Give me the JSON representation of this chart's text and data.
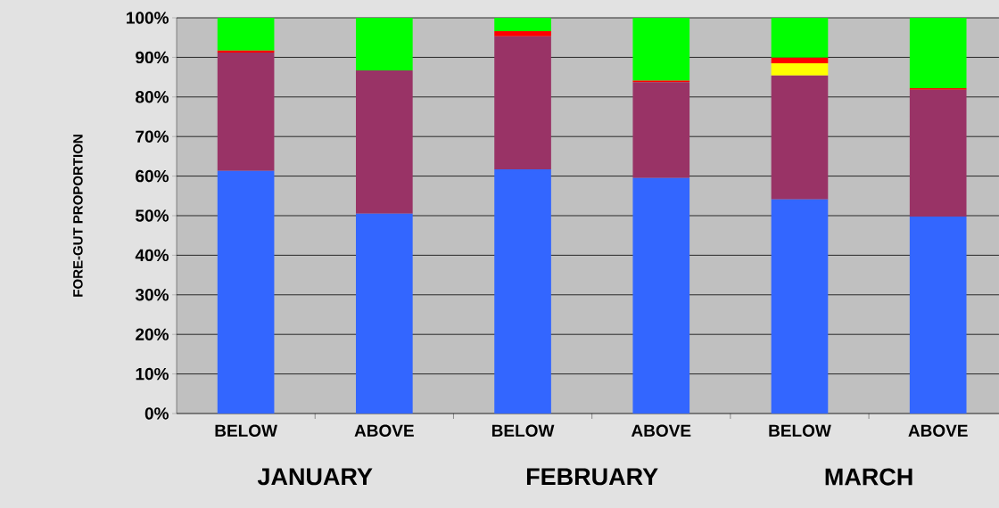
{
  "chart_data": {
    "type": "bar",
    "stacked": true,
    "categories": [
      "BELOW",
      "ABOVE",
      "BELOW",
      "ABOVE",
      "BELOW",
      "ABOVE"
    ],
    "ylabel": "FORE-GUT PROPORTION",
    "annotations": [
      "JANUARY",
      "FEBRUARY",
      "MARCH"
    ],
    "series": [
      {
        "color": "#3366ff",
        "values": [
          61.3,
          50.5,
          61.7,
          59.5,
          54.1,
          49.8
        ]
      },
      {
        "color": "#993366",
        "values": [
          29.9,
          36.2,
          33.6,
          24.2,
          31.3,
          32.0
        ]
      },
      {
        "color": "#ffff00",
        "values": [
          0,
          0,
          0,
          0,
          3.1,
          0
        ]
      },
      {
        "color": "#ff0000",
        "values": [
          0.5,
          0,
          1.3,
          0.4,
          1.4,
          0.4
        ]
      },
      {
        "color": "#00ff00",
        "values": [
          8.3,
          13.3,
          3.4,
          15.9,
          10.1,
          17.8
        ]
      }
    ],
    "ylim": [
      0,
      100
    ],
    "yticks": [
      {
        "value": 0,
        "label": "0%"
      },
      {
        "value": 10,
        "label": "10%"
      },
      {
        "value": 20,
        "label": "20%"
      },
      {
        "value": 30,
        "label": "30%"
      },
      {
        "value": 40,
        "label": "40%"
      },
      {
        "value": 50,
        "label": "50%"
      },
      {
        "value": 60,
        "label": "60%"
      },
      {
        "value": 70,
        "label": "70%"
      },
      {
        "value": 80,
        "label": "80%"
      },
      {
        "value": 90,
        "label": "90%"
      },
      {
        "value": 100,
        "label": "100%"
      }
    ],
    "grid": "y"
  }
}
